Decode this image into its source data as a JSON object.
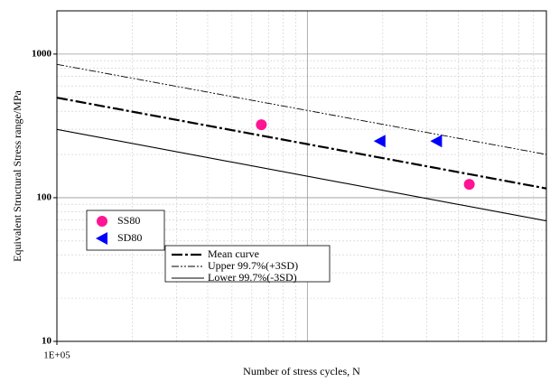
{
  "chart_data": {
    "type": "scatter",
    "xlabel": "Number of stress cycles, N",
    "ylabel": "Equivalent Structural Stress range/MPa",
    "xscale": "log",
    "yscale": "log",
    "grid": true,
    "xlim": [
      100000,
      9000000
    ],
    "ylim": [
      10,
      2000
    ],
    "xticks": [
      {
        "value": 100000,
        "label": "1E+05"
      }
    ],
    "yticks": [
      10,
      100,
      1000
    ],
    "points": [
      {
        "name": "SS80",
        "color": "#ff1493",
        "marker": "circle",
        "x": [
          655000,
          4430000
        ],
        "values": [
          322,
          124
        ]
      },
      {
        "name": "SD80",
        "color": "#0000ff",
        "marker": "triangle-left",
        "x": [
          1950000,
          3280000
        ],
        "values": [
          248,
          248
        ]
      }
    ],
    "lines": [
      {
        "name": "Mean curve",
        "color": "#000000",
        "dash": "12,3,3,3",
        "width": 2.2,
        "x": [
          100000,
          9000000
        ],
        "values": [
          497,
          116
        ]
      },
      {
        "name": "Upper 99.7%(+3SD)",
        "color": "#000000",
        "dash": "8,2,2,2,2,2",
        "width": 0.9,
        "x": [
          100000,
          9000000
        ],
        "values": [
          848,
          200
        ]
      },
      {
        "name": "Lower 99.7%(-3SD)",
        "color": "#000000",
        "dash": "none",
        "width": 1.1,
        "x": [
          100000,
          9000000
        ],
        "values": [
          299,
          69
        ]
      }
    ]
  }
}
